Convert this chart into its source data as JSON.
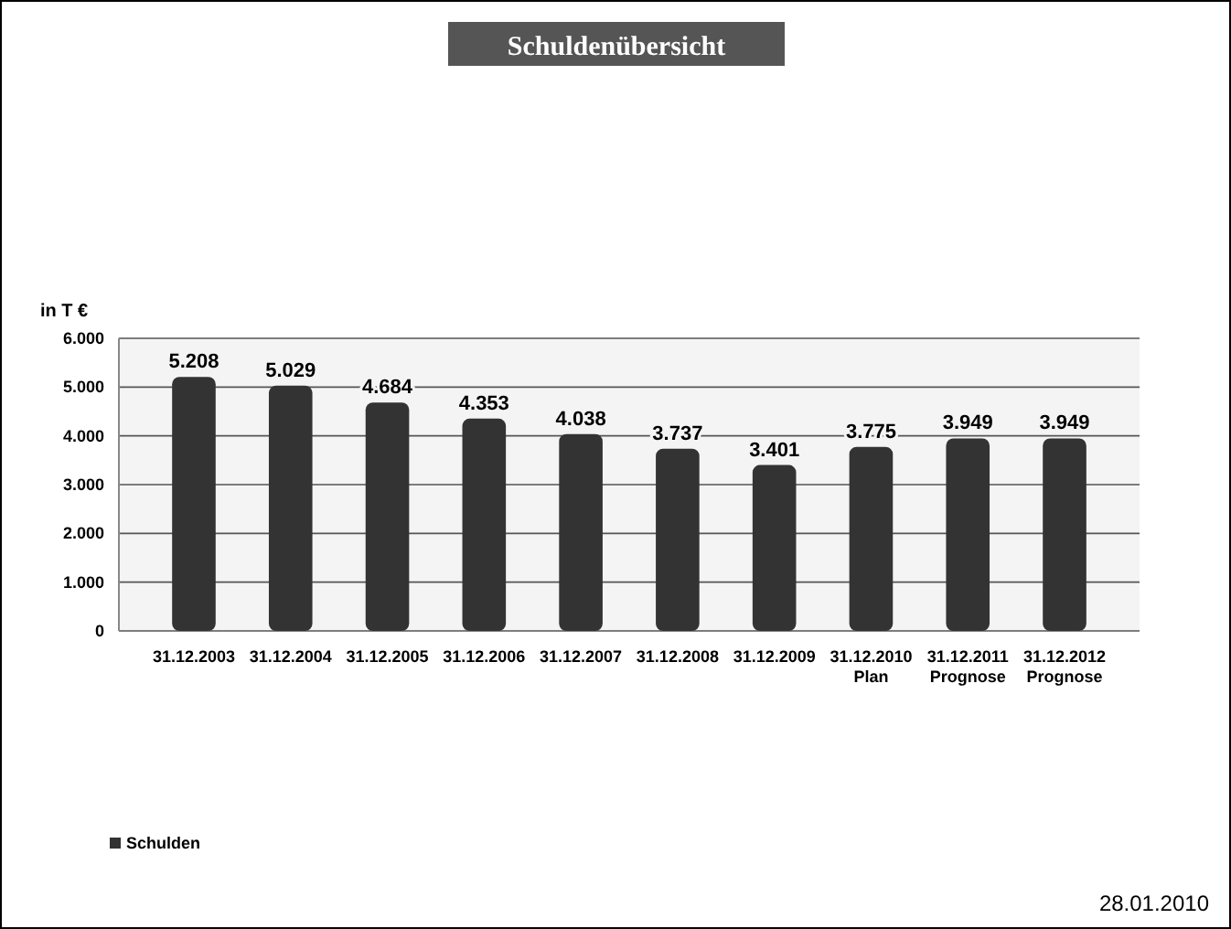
{
  "chart_data": {
    "type": "bar",
    "title": "Schuldenübersicht",
    "ylabel": "in T €",
    "categories": [
      "31.12.2003",
      "31.12.2004",
      "31.12.2005",
      "31.12.2006",
      "31.12.2007",
      "31.12.2008",
      "31.12.2009",
      "31.12.2010\nPlan",
      "31.12.2011\nPrognose",
      "31.12.2012\nPrognose"
    ],
    "series": [
      {
        "name": "Schulden",
        "color": "#333333",
        "values": [
          5208,
          5029,
          4684,
          4353,
          4038,
          3737,
          3401,
          3775,
          3949,
          3949
        ],
        "value_labels": [
          "5.208",
          "5.029",
          "4.684",
          "4.353",
          "4.038",
          "3.737",
          "3.401",
          "3.775",
          "3.949",
          "3.949"
        ]
      }
    ],
    "ylim": [
      0,
      6000
    ],
    "yticks": [
      {
        "value": 0,
        "label": "0"
      },
      {
        "value": 1000,
        "label": "1.000"
      },
      {
        "value": 2000,
        "label": "2.000"
      },
      {
        "value": 3000,
        "label": "3.000"
      },
      {
        "value": 4000,
        "label": "4.000"
      },
      {
        "value": 5000,
        "label": "5.000"
      },
      {
        "value": 6000,
        "label": "6.000"
      }
    ],
    "grid": "y",
    "legend": "bottom left",
    "annotations": [
      "28.01.2010"
    ]
  }
}
